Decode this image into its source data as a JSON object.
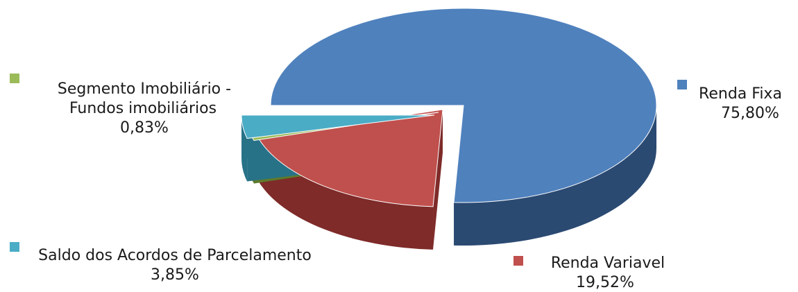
{
  "chart_data": {
    "type": "pie",
    "title": "",
    "slices": [
      {
        "id": "renda-fixa",
        "label": "Renda Fixa",
        "value": 75.8,
        "value_label": "75,80%",
        "color": "#4F81BD",
        "side_color": "#2B4A72",
        "exploded": false
      },
      {
        "id": "renda-variavel",
        "label": "Renda Variavel",
        "value": 19.52,
        "value_label": "19,52%",
        "color": "#C0504D",
        "side_color": "#7E2B29",
        "exploded": true
      },
      {
        "id": "segmento-imobiliario",
        "label": "Segmento Imobiliário - Fundos imobiliários",
        "label_lines": [
          "Segmento Imobiliário -",
          "Fundos imobiliários"
        ],
        "value": 0.83,
        "value_label": "0,83%",
        "color": "#9BBB59",
        "side_color": "#5E7A2B",
        "exploded": true
      },
      {
        "id": "saldo-acordos",
        "label": "Saldo dos Acordos de Parcelamento",
        "value": 3.85,
        "value_label": "3,85%",
        "color": "#4BACC6",
        "side_color": "#277287",
        "exploded": true
      }
    ],
    "legend_placement": "around"
  }
}
